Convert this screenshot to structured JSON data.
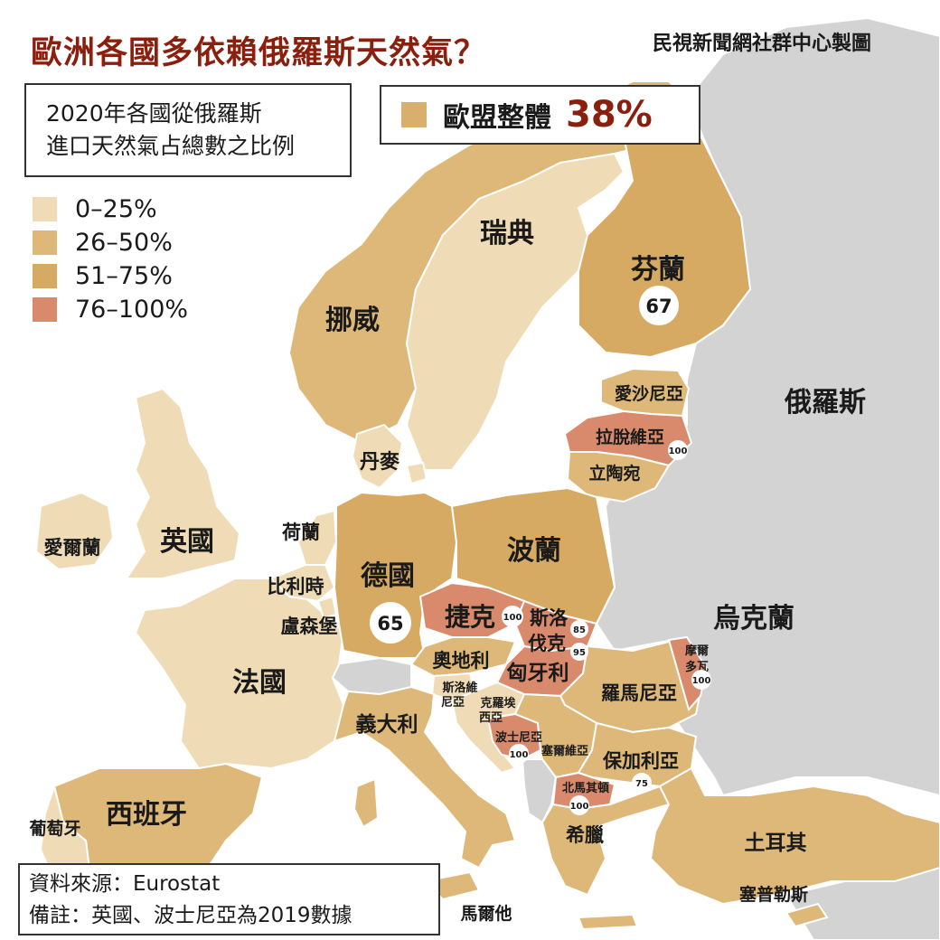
{
  "title": "歐洲各國多依賴俄羅斯天然氣？",
  "credit": "民視新聞網社群中心製圖",
  "legend": {
    "heading_line1": "2020年各國從俄羅斯",
    "heading_line2": "進口天然氣占總數之比例",
    "items": [
      {
        "label": "0–25%",
        "color": "#efdcb6"
      },
      {
        "label": "26–50%",
        "color": "#deb878"
      },
      {
        "label": "51–75%",
        "color": "#d6aa62"
      },
      {
        "label": "76–100%",
        "color": "#da8a6c"
      }
    ]
  },
  "eu_total": {
    "label": "歐盟整體",
    "value": "38%",
    "color": "#d8af6c"
  },
  "colors": {
    "sea": "#ffffff",
    "non_eu_land": "#d3d3d3",
    "border": "#ffffff",
    "title": "#8a1f0e"
  },
  "countries": {
    "norway": "挪威",
    "sweden": "瑞典",
    "finland": "芬蘭",
    "russia": "俄羅斯",
    "estonia": "愛沙尼亞",
    "latvia": "拉脫維亞",
    "lithuania": "立陶宛",
    "denmark": "丹麥",
    "uk": "英國",
    "ireland": "愛爾蘭",
    "netherlands": "荷蘭",
    "belgium": "比利時",
    "luxembourg": "盧森堡",
    "germany": "德國",
    "poland": "波蘭",
    "czech": "捷克",
    "slovakia_1": "斯洛",
    "slovakia_2": "伐克",
    "austria": "奧地利",
    "hungary": "匈牙利",
    "ukraine": "烏克蘭",
    "moldova_1": "摩爾",
    "moldova_2": "多瓦",
    "romania": "羅馬尼亞",
    "slovenia_1": "斯洛維",
    "slovenia_2": "尼亞",
    "croatia_1": "克羅埃",
    "croatia_2": "西亞",
    "bosnia": "波士尼亞",
    "serbia": "塞爾維亞",
    "bulgaria": "保加利亞",
    "north_macedonia": "北馬其頓",
    "greece": "希臘",
    "turkey": "土耳其",
    "cyprus": "塞普勒斯",
    "france": "法國",
    "italy": "義大利",
    "spain": "西班牙",
    "portugal": "葡萄牙",
    "malta": "馬爾他"
  },
  "values": {
    "finland": "67",
    "latvia": "100",
    "germany": "65",
    "czech": "100",
    "slovakia": "85",
    "hungary": "95",
    "moldova": "100",
    "bosnia": "100",
    "bulgaria": "75",
    "north_macedonia": "100"
  },
  "source": {
    "line1": "資料來源：Eurostat",
    "line2": "備註：英國、波士尼亞為2019數據"
  }
}
